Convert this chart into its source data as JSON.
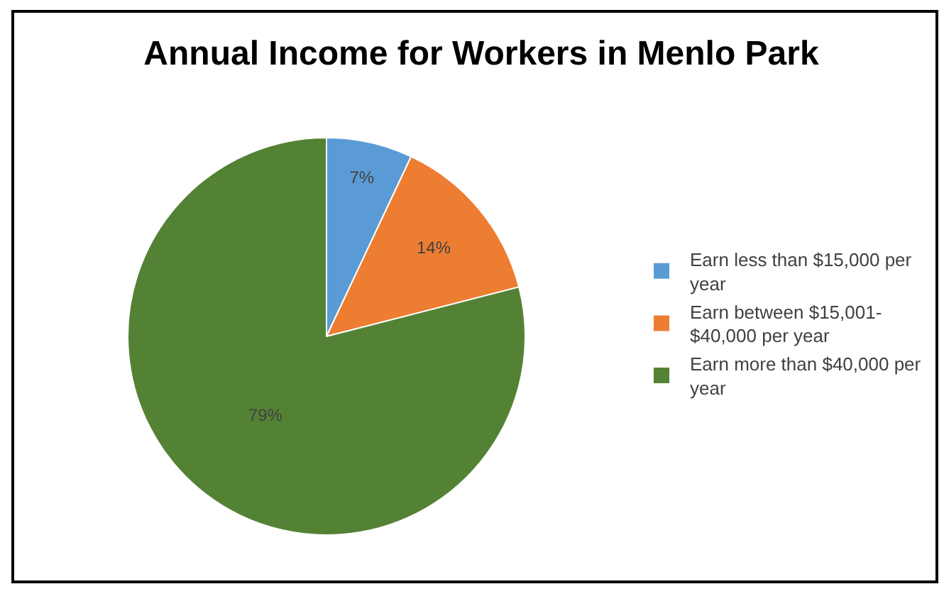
{
  "chart_data": {
    "type": "pie",
    "title": "Annual Income for Workers in Menlo Park",
    "categories": [
      "Earn less than $15,000 per year",
      "Earn between $15,001-$40,000 per year",
      "Earn more than $40,000 per year"
    ],
    "values": [
      7,
      14,
      79
    ],
    "value_labels": [
      "7%",
      "14%",
      "79%"
    ],
    "colors": [
      "#5b9bd5",
      "#ed7d31",
      "#548235"
    ],
    "legend": "right"
  }
}
